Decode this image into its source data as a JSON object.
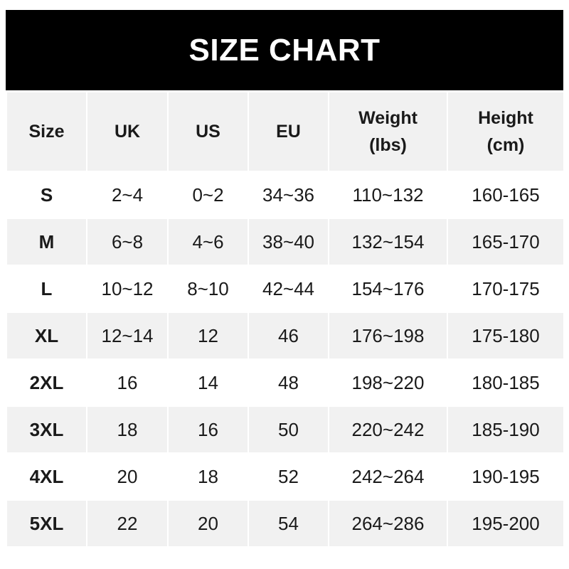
{
  "title": "SIZE CHART",
  "headers": [
    "Size",
    "UK",
    "US",
    "EU",
    "Weight\n(lbs)",
    "Height\n(cm)"
  ],
  "header_lines": [
    [
      "Size"
    ],
    [
      "UK"
    ],
    [
      "US"
    ],
    [
      "EU"
    ],
    [
      "Weight",
      "(lbs)"
    ],
    [
      "Height",
      "(cm)"
    ]
  ],
  "rows": [
    [
      "S",
      "2~4",
      "0~2",
      "34~36",
      "110~132",
      "160-165"
    ],
    [
      "M",
      "6~8",
      "4~6",
      "38~40",
      "132~154",
      "165-170"
    ],
    [
      "L",
      "10~12",
      "8~10",
      "42~44",
      "154~176",
      "170-175"
    ],
    [
      "XL",
      "12~14",
      "12",
      "46",
      "176~198",
      "175-180"
    ],
    [
      "2XL",
      "16",
      "14",
      "48",
      "198~220",
      "180-185"
    ],
    [
      "3XL",
      "18",
      "16",
      "50",
      "220~242",
      "185-190"
    ],
    [
      "4XL",
      "20",
      "18",
      "52",
      "242~264",
      "190-195"
    ],
    [
      "5XL",
      "22",
      "20",
      "54",
      "264~286",
      "195-200"
    ]
  ],
  "colors": {
    "title_bg": "#000000",
    "title_text": "#ffffff",
    "stripe": "#f1f1f1",
    "text": "#1a1a1a"
  }
}
